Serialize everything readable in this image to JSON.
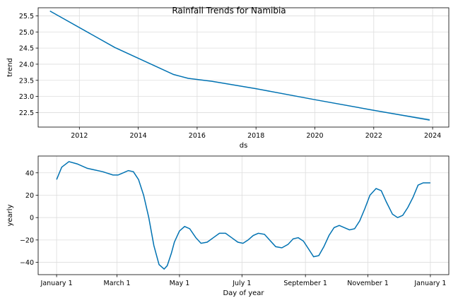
{
  "figure": {
    "title": "Rainfall Trends for Namibia"
  },
  "colors": {
    "line": "#0072B2",
    "band": "#9ecae1",
    "grid": "#dddddd",
    "axis": "#000000"
  },
  "chart_data": [
    {
      "type": "line",
      "name": "trend",
      "xlabel": "ds",
      "ylabel": "trend",
      "xlim": [
        2010.6,
        2024.55
      ],
      "ylim": [
        22.05,
        25.75
      ],
      "xticks": [
        "2012",
        "2014",
        "2016",
        "2018",
        "2020",
        "2022",
        "2024"
      ],
      "yticks": [
        "22.5",
        "23.0",
        "23.5",
        "24.0",
        "24.5",
        "25.0",
        "25.5"
      ],
      "grid": true,
      "x": [
        2011.0,
        2013.2,
        2015.2,
        2015.7,
        2016.5,
        2018.0,
        2020.0,
        2022.0,
        2023.9
      ],
      "y": [
        25.65,
        24.52,
        23.68,
        23.56,
        23.47,
        23.24,
        22.9,
        22.57,
        22.27
      ],
      "uncertainty_band": {
        "x": [
          2022.0,
          2023.9
        ],
        "lower": [
          22.57,
          22.24
        ],
        "upper": [
          22.57,
          22.31
        ]
      }
    },
    {
      "type": "line",
      "name": "yearly",
      "xlabel": "Day of year",
      "ylabel": "yearly",
      "xlim": [
        -18,
        383
      ],
      "ylim": [
        -51,
        55
      ],
      "xticks": [
        "January 1",
        "March 1",
        "May 1",
        "July 1",
        "September 1",
        "November 1",
        "January 1"
      ],
      "xtick_days": [
        0,
        59,
        120,
        181,
        243,
        304,
        365
      ],
      "yticks": [
        "40",
        "20",
        "0",
        "−20",
        "−40"
      ],
      "ytick_values": [
        40,
        20,
        0,
        -20,
        -40
      ],
      "grid": true,
      "x": [
        0,
        5,
        12,
        20,
        30,
        45,
        55,
        60,
        65,
        70,
        75,
        80,
        85,
        90,
        95,
        100,
        105,
        108,
        112,
        115,
        120,
        125,
        130,
        136,
        141,
        147,
        153,
        159,
        165,
        171,
        177,
        182,
        187,
        192,
        197,
        203,
        208,
        214,
        220,
        226,
        231,
        236,
        241,
        246,
        251,
        256,
        261,
        266,
        271,
        276,
        281,
        286,
        291,
        296,
        301,
        306,
        312,
        317,
        322,
        328,
        333,
        338,
        343,
        348,
        353,
        358,
        362,
        365
      ],
      "y": [
        34,
        45,
        50,
        48,
        44,
        41,
        38,
        38,
        40,
        42,
        41,
        34,
        20,
        0,
        -25,
        -42,
        -46,
        -43,
        -32,
        -22,
        -12,
        -8,
        -10,
        -18,
        -23,
        -22,
        -18,
        -14,
        -14,
        -18,
        -22,
        -23,
        -20,
        -16,
        -14,
        -15,
        -20,
        -26,
        -27,
        -24,
        -19,
        -18,
        -21,
        -28,
        -35,
        -34,
        -26,
        -16,
        -9,
        -7,
        -9,
        -11,
        -10,
        -3,
        8,
        20,
        26,
        24,
        14,
        3,
        0,
        2,
        9,
        18,
        29,
        31,
        31,
        31
      ]
    }
  ]
}
